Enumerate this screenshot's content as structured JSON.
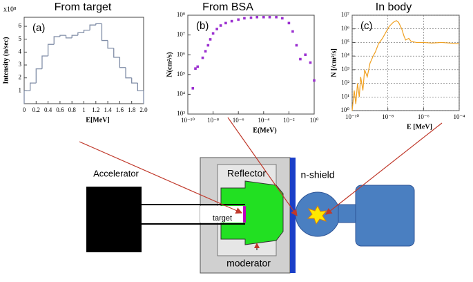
{
  "chart_data": [
    {
      "type": "histogram",
      "title": "From target",
      "panel": "(a)",
      "x_label": "E[MeV]",
      "y_label": "Intensity (n/sec)",
      "y_scale_label": "x10⁸",
      "bins": [
        0,
        0.1,
        0.2,
        0.3,
        0.4,
        0.5,
        0.6,
        0.7,
        0.8,
        0.9,
        1,
        1.1,
        1.2,
        1.3,
        1.4,
        1.5,
        1.6,
        1.7,
        1.8,
        1.9,
        2
      ],
      "counts": [
        1.0,
        1.6,
        2.7,
        3.7,
        4.6,
        5.2,
        5.3,
        5.1,
        5.3,
        5.5,
        5.7,
        6.1,
        6.2,
        4.9,
        4.3,
        3.6,
        2.8,
        2.0,
        1.6,
        1.0
      ],
      "color": "#7f8ca6",
      "xlim": [
        0,
        2
      ],
      "xticks": [
        0,
        0.2,
        0.4,
        0.6,
        0.8,
        1,
        1.2,
        1.4,
        1.6,
        1.8,
        {
          "value": 2,
          "label": "2.0"
        }
      ],
      "ylim": [
        0,
        6.7
      ],
      "yticks": [
        1,
        2,
        3,
        4,
        5,
        6
      ]
    },
    {
      "type": "scatter",
      "title": "From BSA",
      "panel": "(b)",
      "x_label": "E(MeV)",
      "y_label": "N(cm²/s)",
      "log_x": true,
      "log_y": true,
      "color": "#9b30d0",
      "x": [
        2.5e-10,
        4e-10,
        6e-10,
        1.5e-09,
        2.5e-09,
        4e-09,
        6e-09,
        1e-08,
        2e-08,
        4e-08,
        1e-07,
        3e-07,
        1e-06,
        3e-06,
        1e-05,
        3e-05,
        0.0001,
        0.0003,
        0.001,
        0.003,
        0.01,
        0.02,
        0.04,
        0.08,
        0.2,
        0.5,
        1
      ],
      "values": [
        20000.0,
        200000.0,
        250000.0,
        700000.0,
        1500000.0,
        3000000.0,
        6000000.0,
        12000000.0,
        20000000.0,
        30000000.0,
        40000000.0,
        50000000.0,
        60000000.0,
        70000000.0,
        75000000.0,
        80000000.0,
        80000000.0,
        80000000.0,
        80000000.0,
        70000000.0,
        40000000.0,
        15000000.0,
        3000000.0,
        600000.0,
        1000000.0,
        400000.0,
        50000.0
      ],
      "xlim": [
        1e-10,
        1
      ],
      "xticks": [
        {
          "value": 1e-10,
          "label": "10⁻¹⁰"
        },
        {
          "value": 1e-08,
          "label": "10⁻⁸"
        },
        {
          "value": 1e-06,
          "label": "10⁻⁶"
        },
        {
          "value": 0.0001,
          "label": "10⁻⁴"
        },
        {
          "value": 0.01,
          "label": "10⁻²"
        },
        {
          "value": 1,
          "label": "10⁰"
        }
      ],
      "ylim": [
        1000.0,
        100000000.0
      ],
      "yticks": [
        {
          "value": 1000.0,
          "label": "10³"
        },
        {
          "value": 10000.0,
          "label": "10⁴"
        },
        {
          "value": 100000.0,
          "label": "10⁵"
        },
        {
          "value": 1000000.0,
          "label": "10⁶"
        },
        {
          "value": 10000000.0,
          "label": "10⁷"
        },
        {
          "value": 100000000.0,
          "label": "10⁸"
        }
      ]
    },
    {
      "type": "line",
      "title": "In body",
      "panel": "(c)",
      "x_label": "E [MeV]",
      "y_label": "N [/cm²/s]",
      "log_x": true,
      "log_y": true,
      "grid": true,
      "color": "#f0a020",
      "x": [
        1e-10,
        1.3e-10,
        1.6e-10,
        2e-10,
        2.5e-10,
        3e-10,
        4e-10,
        5e-10,
        7e-10,
        1e-09,
        1.5e-09,
        2e-09,
        3e-09,
        5e-09,
        8e-09,
        1.2e-08,
        2e-08,
        3e-08,
        4e-08,
        6e-08,
        8e-08,
        1e-07,
        1.5e-07,
        2e-07,
        4e-07,
        1e-06,
        3e-06,
        1e-05,
        3e-05,
        0.0001
      ],
      "values": [
        1,
        30,
        3,
        100,
        10,
        300,
        30,
        1000,
        300,
        3000,
        10000.0,
        20000.0,
        80000.0,
        200000.0,
        600000.0,
        1500000.0,
        3000000.0,
        4000000.0,
        3000000.0,
        1000000.0,
        300000.0,
        150000.0,
        200000.0,
        120000.0,
        100000.0,
        100000.0,
        90000.0,
        100000.0,
        90000.0,
        80000.0
      ],
      "xlim": [
        1e-10,
        0.0001
      ],
      "xticks": [
        {
          "value": 1e-10,
          "label": "10⁻¹⁰"
        },
        {
          "value": 1e-08,
          "label": "10⁻⁸"
        },
        {
          "value": 1e-06,
          "label": "10⁻⁶"
        },
        {
          "value": 0.0001,
          "label": "10⁻⁴"
        }
      ],
      "ylim": [
        1,
        10000000.0
      ],
      "yticks": [
        {
          "value": 1,
          "label": "10⁰"
        },
        {
          "value": 10,
          "label": "10¹"
        },
        {
          "value": 100,
          "label": "10²"
        },
        {
          "value": 1000,
          "label": "10³"
        },
        {
          "value": 10000.0,
          "label": "10⁴"
        },
        {
          "value": 100000.0,
          "label": "10⁵"
        },
        {
          "value": 1000000.0,
          "label": "10⁶"
        },
        {
          "value": 10000000.0,
          "label": "10⁷"
        }
      ]
    }
  ],
  "diagram": {
    "accelerator": "Accelerator",
    "reflector": "Reflector",
    "shield": "n-shield",
    "target": "target",
    "moderator": "moderator"
  }
}
